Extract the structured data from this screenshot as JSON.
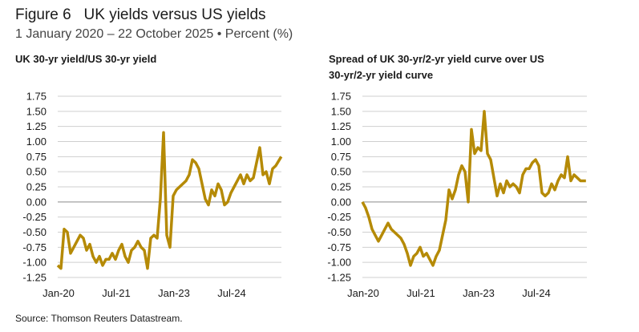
{
  "figure": {
    "title": "Figure 6   UK yields versus US yields",
    "subtitle": "1 January 2020 – 22 October 2025 • Percent (%)",
    "source": "Source: Thomson Reuters Datastream."
  },
  "colors": {
    "line": "#b58a06",
    "grid": "#cfcfcf",
    "zero": "#8a8a8a"
  },
  "chart_data": [
    {
      "type": "line",
      "title": "UK 30-yr yield/US 30-yr yield",
      "ylim": [
        -1.25,
        1.75
      ],
      "yticks": [
        "1.75",
        "1.50",
        "1.25",
        "1.00",
        "0.75",
        "0.50",
        "0.25",
        "0.00",
        "-0.25",
        "-0.50",
        "-0.75",
        "-1.00",
        "-1.25"
      ],
      "xticks": [
        "Jan-20",
        "Jul-21",
        "Jan-23",
        "Jul-24"
      ],
      "grid": true,
      "x": [
        "2020-01",
        "2020-02",
        "2020-03",
        "2020-04",
        "2020-05",
        "2020-06",
        "2020-07",
        "2020-08",
        "2020-09",
        "2020-10",
        "2020-11",
        "2020-12",
        "2021-01",
        "2021-02",
        "2021-03",
        "2021-04",
        "2021-05",
        "2021-06",
        "2021-07",
        "2021-08",
        "2021-09",
        "2021-10",
        "2021-11",
        "2021-12",
        "2022-01",
        "2022-02",
        "2022-03",
        "2022-04",
        "2022-05",
        "2022-06",
        "2022-07",
        "2022-08",
        "2022-09",
        "2022-10",
        "2022-11",
        "2022-12",
        "2023-01",
        "2023-02",
        "2023-03",
        "2023-04",
        "2023-05",
        "2023-06",
        "2023-07",
        "2023-08",
        "2023-09",
        "2023-10",
        "2023-11",
        "2023-12",
        "2024-01",
        "2024-02",
        "2024-03",
        "2024-04",
        "2024-05",
        "2024-06",
        "2024-07",
        "2024-08",
        "2024-09",
        "2024-10",
        "2024-11",
        "2024-12",
        "2025-01",
        "2025-02",
        "2025-03",
        "2025-04",
        "2025-05",
        "2025-06",
        "2025-07",
        "2025-08",
        "2025-09",
        "2025-10"
      ],
      "values": [
        -1.05,
        -1.1,
        -0.45,
        -0.5,
        -0.85,
        -0.75,
        -0.65,
        -0.55,
        -0.6,
        -0.8,
        -0.7,
        -0.9,
        -1.0,
        -0.9,
        -1.05,
        -0.95,
        -0.95,
        -0.85,
        -0.95,
        -0.8,
        -0.7,
        -0.9,
        -1.0,
        -0.8,
        -0.75,
        -0.65,
        -0.75,
        -0.8,
        -1.1,
        -0.6,
        -0.55,
        -0.6,
        0.05,
        1.15,
        -0.55,
        -0.75,
        0.1,
        0.2,
        0.25,
        0.3,
        0.35,
        0.45,
        0.7,
        0.65,
        0.55,
        0.3,
        0.05,
        -0.05,
        0.2,
        0.1,
        0.3,
        0.2,
        -0.05,
        0.0,
        0.15,
        0.25,
        0.35,
        0.45,
        0.3,
        0.45,
        0.35,
        0.4,
        0.65,
        0.9,
        0.45,
        0.5,
        0.3,
        0.55,
        0.6,
        0.75
      ]
    },
    {
      "type": "line",
      "title": "Spread of UK 30-yr/2-yr yield curve over US 30-yr/2-yr yield curve",
      "ylim": [
        -1.25,
        1.75
      ],
      "yticks": [
        "1.75",
        "1.50",
        "1.25",
        "1.00",
        "0.75",
        "0.50",
        "0.25",
        "0.00",
        "-0.25",
        "-0.50",
        "-0.75",
        "-1.00",
        "-1.25"
      ],
      "xticks": [
        "Jan-20",
        "Jul-21",
        "Jan-23",
        "Jul-24"
      ],
      "grid": true,
      "x": [
        "2020-01",
        "2020-02",
        "2020-03",
        "2020-04",
        "2020-05",
        "2020-06",
        "2020-07",
        "2020-08",
        "2020-09",
        "2020-10",
        "2020-11",
        "2020-12",
        "2021-01",
        "2021-02",
        "2021-03",
        "2021-04",
        "2021-05",
        "2021-06",
        "2021-07",
        "2021-08",
        "2021-09",
        "2021-10",
        "2021-11",
        "2021-12",
        "2022-01",
        "2022-02",
        "2022-03",
        "2022-04",
        "2022-05",
        "2022-06",
        "2022-07",
        "2022-08",
        "2022-09",
        "2022-10",
        "2022-11",
        "2022-12",
        "2023-01",
        "2023-02",
        "2023-03",
        "2023-04",
        "2023-05",
        "2023-06",
        "2023-07",
        "2023-08",
        "2023-09",
        "2023-10",
        "2023-11",
        "2023-12",
        "2024-01",
        "2024-02",
        "2024-03",
        "2024-04",
        "2024-05",
        "2024-06",
        "2024-07",
        "2024-08",
        "2024-09",
        "2024-10",
        "2024-11",
        "2024-12",
        "2025-01",
        "2025-02",
        "2025-03",
        "2025-04",
        "2025-05",
        "2025-06",
        "2025-07",
        "2025-08",
        "2025-09",
        "2025-10"
      ],
      "values": [
        0.0,
        -0.1,
        -0.25,
        -0.45,
        -0.55,
        -0.65,
        -0.55,
        -0.45,
        -0.35,
        -0.45,
        -0.5,
        -0.55,
        -0.6,
        -0.7,
        -0.85,
        -1.05,
        -0.9,
        -0.85,
        -0.75,
        -0.9,
        -0.85,
        -0.95,
        -1.05,
        -0.9,
        -0.8,
        -0.55,
        -0.3,
        0.2,
        0.05,
        0.2,
        0.45,
        0.6,
        0.5,
        0.0,
        1.2,
        0.8,
        0.9,
        0.85,
        1.5,
        0.8,
        0.7,
        0.4,
        0.1,
        0.3,
        0.15,
        0.35,
        0.25,
        0.3,
        0.25,
        0.15,
        0.45,
        0.55,
        0.55,
        0.65,
        0.7,
        0.6,
        0.15,
        0.1,
        0.15,
        0.3,
        0.2,
        0.35,
        0.45,
        0.4,
        0.75,
        0.35,
        0.45,
        0.4,
        0.35,
        0.35
      ]
    }
  ]
}
